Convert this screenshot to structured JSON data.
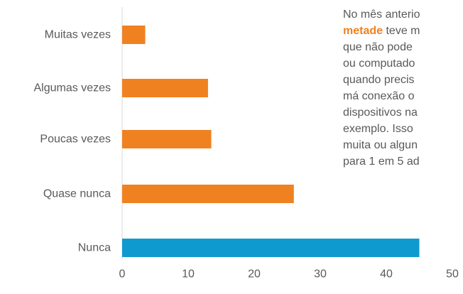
{
  "chart_data": {
    "type": "bar",
    "orientation": "horizontal",
    "categories": [
      "Muitas vezes",
      "Algumas vezes",
      "Poucas vezes",
      "Quase nunca",
      "Nunca"
    ],
    "values": [
      3.5,
      13,
      13.5,
      26,
      45
    ],
    "bar_colors": [
      "#f08121",
      "#f08121",
      "#f08121",
      "#f08121",
      "#0e99cf"
    ],
    "xlim": [
      0,
      50
    ],
    "xticks": [
      "0",
      "10",
      "20",
      "30",
      "40",
      "50"
    ],
    "title": "",
    "xlabel": "",
    "ylabel": "",
    "grid": false
  },
  "annotation": {
    "line1": "No mês anterio",
    "line2_highlight": "metade",
    "line2_rest": " teve m",
    "line3": "que não pode",
    "line4": "ou computado",
    "line5": "quando precis",
    "line6": "má conexão o",
    "line7": "dispositivos na",
    "line8": "exemplo. Isso",
    "line9": "muita ou algun",
    "line10": "para 1 em 5 ad"
  }
}
